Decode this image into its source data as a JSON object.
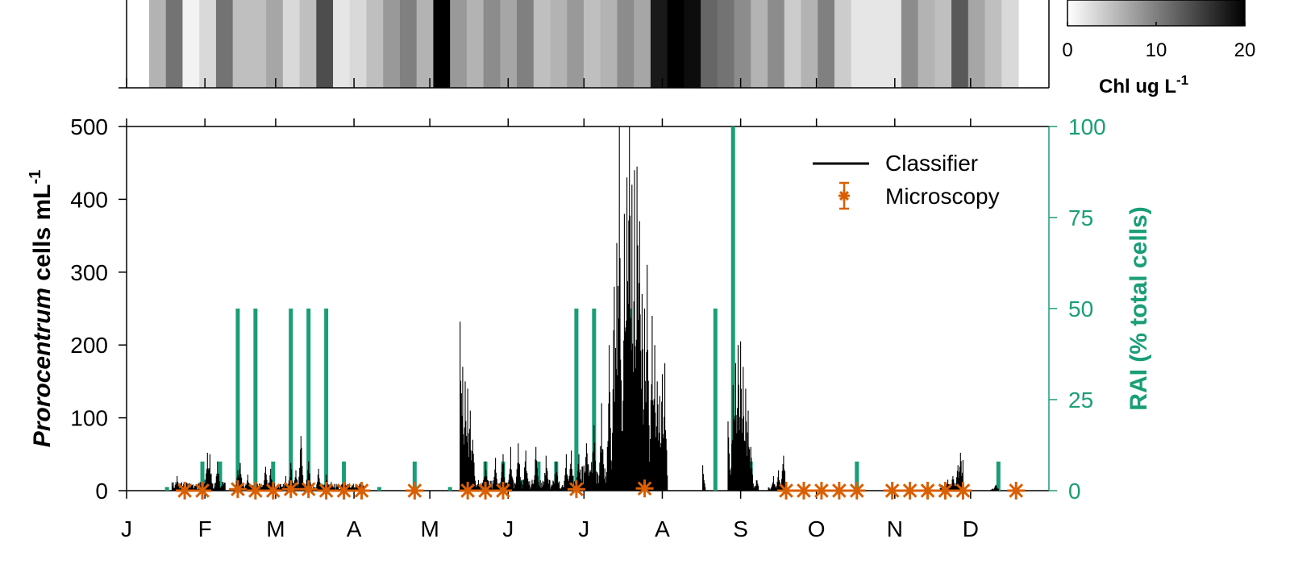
{
  "chart_data": {
    "type": "bar",
    "heatmap_strip": {
      "colorbar": {
        "title": "Chl ug L",
        "title_superscript": "-1",
        "ticks": [
          0,
          10,
          20
        ],
        "range": [
          0,
          20
        ]
      },
      "values": [
        6,
        11,
        1,
        3,
        11,
        5,
        5,
        7,
        3,
        5,
        14,
        2,
        3,
        5,
        8,
        10,
        6,
        20,
        8,
        6,
        9,
        7,
        10,
        5,
        6,
        8,
        5,
        6,
        9,
        7,
        18,
        20,
        19,
        12,
        11,
        9,
        6,
        9,
        4,
        6,
        10,
        4,
        2,
        2,
        2,
        9,
        6,
        5,
        13,
        7,
        5,
        3
      ]
    },
    "x_tick_labels": [
      "J",
      "F",
      "M",
      "A",
      "M",
      "J",
      "J",
      "A",
      "S",
      "O",
      "N",
      "D"
    ],
    "x_tick_days": [
      0,
      31,
      59,
      90,
      120,
      151,
      181,
      212,
      243,
      273,
      304,
      334
    ],
    "xlim": [
      0,
      365
    ],
    "ylabel_italic": "Prorocentrum",
    "ylabel_rest": " cells mL",
    "ylabel_superscript": "-1",
    "ylim": [
      0,
      500
    ],
    "yticks": [
      0,
      100,
      200,
      300,
      400,
      500
    ],
    "y2label": "RAI (% total cells)",
    "y2lim": [
      0,
      100
    ],
    "y2ticks": [
      0,
      25,
      50,
      75,
      100
    ],
    "legend": {
      "position": "top-right",
      "entries": [
        "Classifier",
        "Microscopy"
      ]
    },
    "series": [
      {
        "name": "Classifier",
        "color": "#000000",
        "segments": [
          {
            "start": 18,
            "end": 39,
            "level": 12,
            "peaks": [
              [
                20,
                20
              ],
              [
                24,
                10
              ],
              [
                31,
                15
              ],
              [
                32,
                52
              ],
              [
                33,
                50
              ],
              [
                36,
                40
              ],
              [
                38,
                12
              ]
            ]
          },
          {
            "start": 43,
            "end": 94,
            "level": 10,
            "peaks": [
              [
                44,
                28
              ],
              [
                45,
                38
              ],
              [
                48,
                22
              ],
              [
                55,
                33
              ],
              [
                57,
                30
              ],
              [
                63,
                20
              ],
              [
                65,
                38
              ],
              [
                67,
                28
              ],
              [
                69,
                75
              ],
              [
                72,
                40
              ],
              [
                76,
                30
              ],
              [
                79,
                22
              ],
              [
                81,
                12
              ],
              [
                88,
                8
              ]
            ]
          },
          {
            "start": 132,
            "end": 138,
            "level": 20,
            "peaks": [
              [
                132,
                232
              ],
              [
                133,
                170
              ],
              [
                134,
                150
              ],
              [
                135,
                140
              ],
              [
                136,
                110
              ],
              [
                137,
                70
              ]
            ]
          },
          {
            "start": 138,
            "end": 180,
            "level": 15,
            "peaks": [
              [
                142,
                40
              ],
              [
                146,
                45
              ],
              [
                149,
                50
              ],
              [
                152,
                60
              ],
              [
                155,
                65
              ],
              [
                158,
                55
              ],
              [
                162,
                60
              ],
              [
                166,
                48
              ],
              [
                170,
                40
              ],
              [
                174,
                50
              ],
              [
                176,
                55
              ],
              [
                179,
                50
              ]
            ]
          },
          {
            "start": 180,
            "end": 214,
            "level": 40,
            "peaks": [
              [
                182,
                65
              ],
              [
                185,
                90
              ],
              [
                188,
                120
              ],
              [
                191,
                200
              ],
              [
                193,
                280
              ],
              [
                194,
                340
              ],
              [
                195,
                500
              ],
              [
                197,
                380
              ],
              [
                198,
                430
              ],
              [
                199,
                500
              ],
              [
                200,
                420
              ],
              [
                201,
                440
              ],
              [
                202,
                445
              ],
              [
                203,
                370
              ],
              [
                204,
                270
              ],
              [
                205,
                250
              ],
              [
                206,
                310
              ],
              [
                208,
                240
              ],
              [
                209,
                200
              ],
              [
                210,
                150
              ],
              [
                211,
                130
              ],
              [
                212,
                160
              ],
              [
                213,
                175
              ]
            ]
          },
          {
            "start": 228,
            "end": 229,
            "level": 5,
            "peaks": [
              [
                228,
                35
              ]
            ]
          },
          {
            "start": 238,
            "end": 250,
            "level": 15,
            "peaks": [
              [
                238,
                95
              ],
              [
                240,
                145
              ],
              [
                241,
                175
              ],
              [
                242,
                200
              ],
              [
                243,
                205
              ],
              [
                244,
                170
              ],
              [
                245,
                140
              ],
              [
                246,
                110
              ],
              [
                247,
                60
              ]
            ]
          },
          {
            "start": 254,
            "end": 262,
            "level": 5,
            "peaks": [
              [
                256,
                20
              ],
              [
                258,
                28
              ],
              [
                260,
                48
              ]
            ]
          },
          {
            "start": 322,
            "end": 331,
            "level": 10,
            "peaks": [
              [
                325,
                15
              ],
              [
                327,
                20
              ],
              [
                329,
                35
              ],
              [
                330,
                52
              ],
              [
                331,
                42
              ]
            ]
          },
          {
            "start": 342,
            "end": 345,
            "level": 3,
            "peaks": [
              [
                344,
                8
              ]
            ]
          }
        ]
      },
      {
        "name": "Microscopy",
        "color": "#d95f02",
        "points": [
          [
            23,
            0
          ],
          [
            30,
            0
          ],
          [
            44,
            2
          ],
          [
            51,
            0
          ],
          [
            58,
            0
          ],
          [
            65,
            2
          ],
          [
            72,
            2
          ],
          [
            79,
            0
          ],
          [
            86,
            0
          ],
          [
            93,
            0
          ],
          [
            114,
            0
          ],
          [
            135,
            0
          ],
          [
            142,
            0
          ],
          [
            149,
            0
          ],
          [
            178,
            2
          ],
          [
            205,
            3
          ],
          [
            261,
            0
          ],
          [
            268,
            0
          ],
          [
            275,
            0
          ],
          [
            282,
            0
          ],
          [
            289,
            0
          ],
          [
            303,
            0
          ],
          [
            310,
            0
          ],
          [
            317,
            0
          ],
          [
            324,
            0
          ],
          [
            331,
            0
          ],
          [
            352,
            0
          ]
        ]
      },
      {
        "name": "RAI",
        "color": "#1a9e77",
        "bars": [
          [
            16,
            1
          ],
          [
            30,
            8
          ],
          [
            37,
            8
          ],
          [
            44,
            50
          ],
          [
            51,
            50
          ],
          [
            58,
            8
          ],
          [
            65,
            50
          ],
          [
            72,
            50
          ],
          [
            79,
            50
          ],
          [
            86,
            8
          ],
          [
            100,
            1
          ],
          [
            114,
            8
          ],
          [
            128,
            1
          ],
          [
            135,
            1
          ],
          [
            142,
            8
          ],
          [
            149,
            8
          ],
          [
            156,
            3
          ],
          [
            163,
            8
          ],
          [
            170,
            8
          ],
          [
            178,
            50
          ],
          [
            185,
            50
          ],
          [
            192,
            8
          ],
          [
            199,
            50
          ],
          [
            212,
            8
          ],
          [
            233,
            50
          ],
          [
            240,
            100
          ],
          [
            247,
            8
          ],
          [
            289,
            8
          ],
          [
            345,
            8
          ]
        ]
      }
    ]
  }
}
